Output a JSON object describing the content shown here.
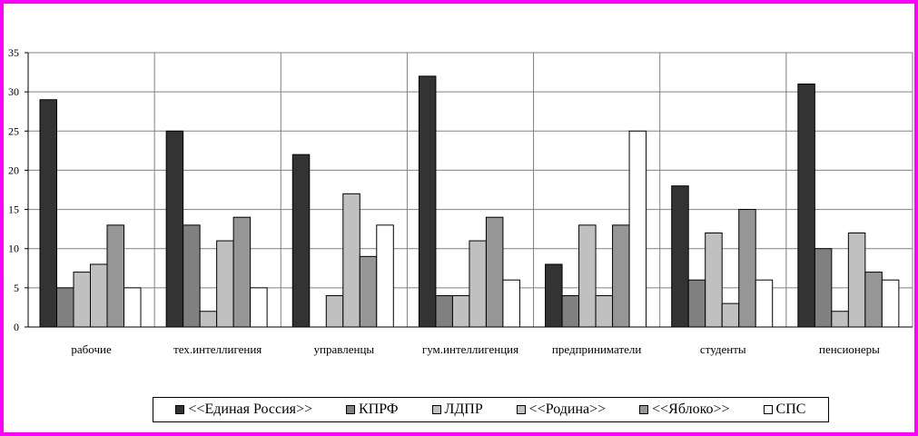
{
  "chart_data": {
    "type": "bar",
    "title": "",
    "xlabel": "",
    "ylabel": "",
    "ylim": [
      0,
      35
    ],
    "yticks": [
      0,
      5,
      10,
      15,
      20,
      25,
      30,
      35
    ],
    "grid": true,
    "legend_position": "bottom",
    "categories": [
      "рабочие",
      "тех.интеллигения",
      "управленцы",
      "гум.интеллигенция",
      "предприниматели",
      "студенты",
      "пенсионеры"
    ],
    "series": [
      {
        "name": "<<Единая Россия>>",
        "color": "#333333",
        "values": [
          29,
          25,
          22,
          32,
          8,
          18,
          31
        ]
      },
      {
        "name": "КПРФ",
        "color": "#808080",
        "values": [
          5,
          13,
          0,
          4,
          4,
          6,
          10
        ]
      },
      {
        "name": "ЛДПР",
        "color": "#c0c0c0",
        "values": [
          7,
          2,
          4,
          4,
          13,
          12,
          2
        ]
      },
      {
        "name": "<<Родина>>",
        "color": "#c0c0c0",
        "values": [
          8,
          11,
          17,
          11,
          4,
          3,
          12
        ]
      },
      {
        "name": "<<Яблоко>>",
        "color": "#969696",
        "values": [
          13,
          14,
          9,
          14,
          13,
          15,
          7
        ]
      },
      {
        "name": "СПС",
        "color": "#ffffff",
        "values": [
          5,
          5,
          13,
          6,
          25,
          6,
          6
        ]
      }
    ]
  }
}
